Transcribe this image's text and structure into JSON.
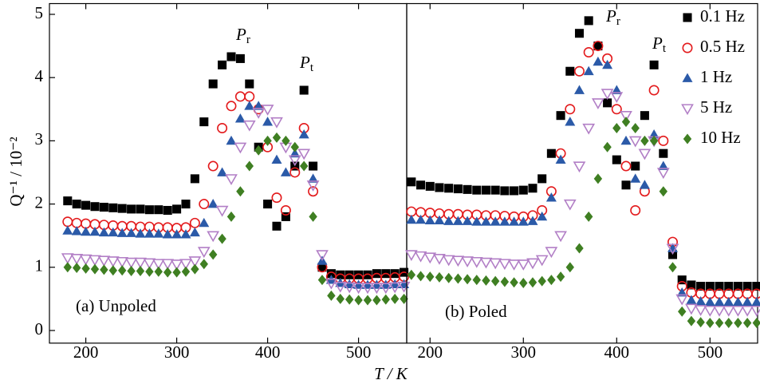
{
  "chart_data": [
    {
      "type": "scatter",
      "ylabel": "Q⁻¹ / 10⁻²",
      "xlabel": "T / K",
      "panel_label": "(a) Unpoled",
      "peak_labels": [
        {
          "symbol": "P",
          "subscript": "r"
        },
        {
          "symbol": "P",
          "subscript": "t"
        }
      ],
      "xlim": [
        160,
        553
      ],
      "ylim": [
        -0.2,
        5.17
      ],
      "xticks": [
        200,
        300,
        400,
        500
      ],
      "yticks": [
        0,
        1,
        2,
        3,
        4,
        5
      ],
      "x": [
        180,
        190,
        200,
        210,
        220,
        230,
        240,
        250,
        260,
        270,
        280,
        290,
        300,
        310,
        320,
        330,
        340,
        350,
        360,
        370,
        380,
        390,
        400,
        410,
        420,
        430,
        440,
        450,
        460,
        470,
        480,
        490,
        500,
        510,
        520,
        530,
        540,
        550
      ],
      "series": [
        {
          "color": "#000000",
          "marker": "square",
          "values": [
            2.05,
            2.0,
            1.98,
            1.96,
            1.95,
            1.94,
            1.93,
            1.92,
            1.92,
            1.91,
            1.91,
            1.9,
            1.92,
            2.0,
            2.4,
            3.3,
            3.9,
            4.2,
            4.33,
            4.3,
            3.9,
            2.9,
            2.0,
            1.65,
            1.8,
            2.6,
            3.8,
            2.6,
            1.0,
            0.9,
            0.88,
            0.88,
            0.88,
            0.88,
            0.9,
            0.9,
            0.9,
            0.92
          ]
        },
        {
          "color": "#e31a1c",
          "marker": "circle",
          "values": [
            1.72,
            1.7,
            1.69,
            1.68,
            1.67,
            1.66,
            1.65,
            1.65,
            1.64,
            1.64,
            1.63,
            1.63,
            1.62,
            1.63,
            1.7,
            2.0,
            2.6,
            3.2,
            3.55,
            3.7,
            3.7,
            3.5,
            2.9,
            2.1,
            1.9,
            2.5,
            3.2,
            2.2,
            1.0,
            0.85,
            0.82,
            0.82,
            0.82,
            0.82,
            0.83,
            0.83,
            0.84,
            0.85
          ]
        },
        {
          "color": "#2b5aa8",
          "marker": "triangle",
          "values": [
            1.58,
            1.57,
            1.56,
            1.56,
            1.55,
            1.55,
            1.54,
            1.54,
            1.53,
            1.53,
            1.53,
            1.52,
            1.52,
            1.52,
            1.55,
            1.7,
            2.0,
            2.5,
            3.0,
            3.35,
            3.55,
            3.55,
            3.3,
            2.7,
            2.5,
            2.8,
            3.1,
            2.4,
            1.1,
            0.8,
            0.75,
            0.73,
            0.72,
            0.72,
            0.72,
            0.72,
            0.73,
            0.73
          ]
        },
        {
          "color": "#b27fc6",
          "marker": "down-triangle",
          "values": [
            1.15,
            1.14,
            1.13,
            1.12,
            1.11,
            1.1,
            1.09,
            1.08,
            1.08,
            1.07,
            1.06,
            1.06,
            1.05,
            1.06,
            1.1,
            1.25,
            1.5,
            1.9,
            2.4,
            2.9,
            3.25,
            3.45,
            3.5,
            3.3,
            2.9,
            2.7,
            2.8,
            2.3,
            1.2,
            0.75,
            0.7,
            0.69,
            0.68,
            0.68,
            0.68,
            0.68,
            0.69,
            0.7
          ]
        },
        {
          "color": "#3f7f22",
          "marker": "diamond",
          "values": [
            1.0,
            0.99,
            0.98,
            0.97,
            0.96,
            0.95,
            0.95,
            0.94,
            0.94,
            0.93,
            0.93,
            0.92,
            0.92,
            0.93,
            0.97,
            1.05,
            1.2,
            1.45,
            1.8,
            2.2,
            2.6,
            2.85,
            3.0,
            3.05,
            3.0,
            2.9,
            2.6,
            1.8,
            0.8,
            0.55,
            0.5,
            0.49,
            0.48,
            0.48,
            0.48,
            0.49,
            0.5,
            0.5
          ]
        }
      ]
    },
    {
      "type": "scatter",
      "panel_label": "(b) Poled",
      "legend": "upper right",
      "peak_labels": [
        {
          "symbol": "P",
          "subscript": "r"
        },
        {
          "symbol": "P",
          "subscript": "t"
        }
      ],
      "xlim": [
        175,
        551
      ],
      "ylim": [
        -0.2,
        5.17
      ],
      "xticks": [
        200,
        300,
        400,
        500
      ],
      "x": [
        180,
        190,
        200,
        210,
        220,
        230,
        240,
        250,
        260,
        270,
        280,
        290,
        300,
        310,
        320,
        330,
        340,
        350,
        360,
        370,
        380,
        390,
        400,
        410,
        420,
        430,
        440,
        450,
        460,
        470,
        480,
        490,
        500,
        510,
        520,
        530,
        540,
        550
      ],
      "series": [
        {
          "name": "0.1 Hz",
          "color": "#000000",
          "marker": "square",
          "values": [
            2.35,
            2.3,
            2.28,
            2.26,
            2.25,
            2.24,
            2.23,
            2.22,
            2.22,
            2.22,
            2.21,
            2.21,
            2.22,
            2.25,
            2.4,
            2.8,
            3.4,
            4.1,
            4.7,
            4.9,
            4.5,
            3.6,
            2.7,
            2.3,
            2.6,
            3.4,
            4.2,
            2.8,
            1.2,
            0.8,
            0.72,
            0.7,
            0.7,
            0.7,
            0.7,
            0.7,
            0.7,
            0.7
          ]
        },
        {
          "name": "0.5 Hz",
          "color": "#e31a1c",
          "marker": "circle",
          "values": [
            1.88,
            1.87,
            1.86,
            1.85,
            1.84,
            1.84,
            1.83,
            1.83,
            1.82,
            1.82,
            1.81,
            1.8,
            1.8,
            1.82,
            1.9,
            2.2,
            2.8,
            3.5,
            4.1,
            4.4,
            4.5,
            4.3,
            3.5,
            2.6,
            1.9,
            2.2,
            3.8,
            3.0,
            1.4,
            0.7,
            0.6,
            0.58,
            0.58,
            0.58,
            0.58,
            0.58,
            0.58,
            0.58
          ]
        },
        {
          "name": "1 Hz",
          "color": "#2b5aa8",
          "marker": "triangle",
          "values": [
            1.75,
            1.75,
            1.74,
            1.74,
            1.73,
            1.73,
            1.73,
            1.72,
            1.72,
            1.72,
            1.72,
            1.72,
            1.72,
            1.73,
            1.8,
            2.1,
            2.7,
            3.3,
            3.8,
            4.1,
            4.25,
            4.2,
            3.8,
            3.0,
            2.4,
            2.3,
            3.1,
            2.6,
            1.3,
            0.6,
            0.48,
            0.46,
            0.45,
            0.45,
            0.45,
            0.45,
            0.45,
            0.45
          ]
        },
        {
          "name": "5 Hz",
          "color": "#b27fc6",
          "marker": "down-triangle",
          "values": [
            1.2,
            1.18,
            1.16,
            1.14,
            1.12,
            1.11,
            1.1,
            1.09,
            1.08,
            1.07,
            1.06,
            1.05,
            1.05,
            1.07,
            1.12,
            1.25,
            1.5,
            2.0,
            2.6,
            3.2,
            3.6,
            3.75,
            3.7,
            3.4,
            3.0,
            2.8,
            3.0,
            2.5,
            1.3,
            0.5,
            0.35,
            0.33,
            0.32,
            0.32,
            0.32,
            0.32,
            0.32,
            0.32
          ]
        },
        {
          "name": "10 Hz",
          "color": "#3f7f22",
          "marker": "diamond",
          "values": [
            0.88,
            0.86,
            0.85,
            0.84,
            0.83,
            0.82,
            0.81,
            0.8,
            0.79,
            0.78,
            0.77,
            0.76,
            0.75,
            0.76,
            0.78,
            0.8,
            0.85,
            1.0,
            1.3,
            1.8,
            2.4,
            2.9,
            3.2,
            3.3,
            3.2,
            3.0,
            3.0,
            2.2,
            1.0,
            0.3,
            0.15,
            0.13,
            0.12,
            0.12,
            0.12,
            0.12,
            0.12,
            0.12
          ]
        }
      ]
    }
  ]
}
